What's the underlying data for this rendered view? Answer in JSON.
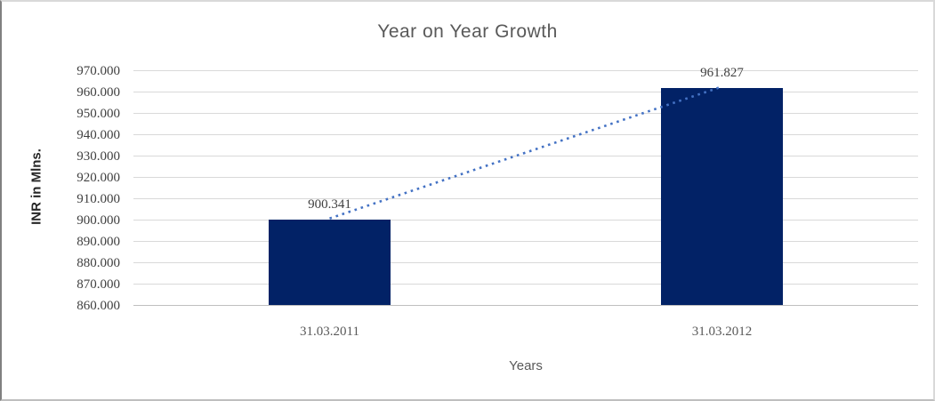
{
  "chart_data": {
    "type": "bar",
    "title": "Year on Year Growth",
    "xlabel": "Years",
    "ylabel": "INR in Mlns.",
    "categories": [
      "31.03.2011",
      "31.03.2012"
    ],
    "values": [
      900.341,
      961.827
    ],
    "value_labels": [
      "900.341",
      "961.827"
    ],
    "ylim": [
      860,
      970
    ],
    "ytick_step": 10,
    "ytick_labels": [
      "860.000",
      "870.000",
      "880.000",
      "890.000",
      "900.000",
      "910.000",
      "920.000",
      "930.000",
      "940.000",
      "950.000",
      "960.000",
      "970.000"
    ],
    "grid": true,
    "legend": "none",
    "trendline": {
      "style": "dotted",
      "connects": [
        900.341,
        961.827
      ]
    },
    "colors": {
      "bar": "#022266",
      "trendline": "#4472c4",
      "gridline": "#d9d9d9",
      "axis_line": "#bfbfbf",
      "title_text": "#595959",
      "tick_text": "#404040",
      "category_text": "#595959"
    }
  }
}
